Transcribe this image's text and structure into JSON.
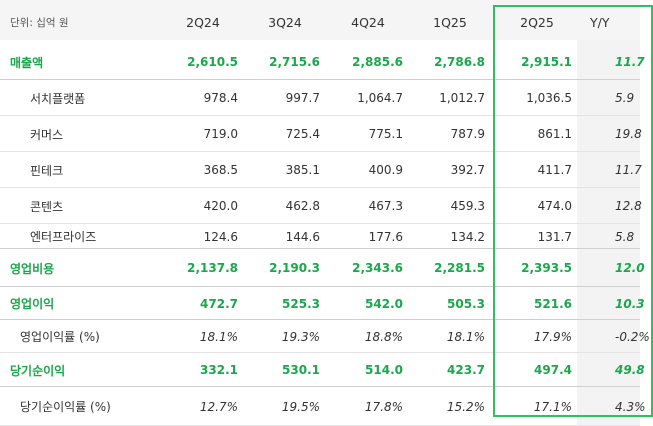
{
  "unit_label": "단위: 십억 원",
  "columns": [
    "2Q24",
    "3Q24",
    "4Q24",
    "1Q25",
    "2Q25",
    "Y/Y"
  ],
  "rows": [
    {
      "label": "매출액",
      "values": [
        "2,610.5",
        "2,715.6",
        "2,885.6",
        "2,786.8",
        "2,915.1",
        "11.7"
      ],
      "type": "main"
    },
    {
      "label": "서치플랫폼",
      "values": [
        "978.4",
        "997.7",
        "1,064.7",
        "1,012.7",
        "1,036.5",
        "5.9"
      ],
      "type": "sub"
    },
    {
      "label": "커머스",
      "values": [
        "719.0",
        "725.4",
        "775.1",
        "787.9",
        "861.1",
        "19.8"
      ],
      "type": "sub"
    },
    {
      "label": "핀테크",
      "values": [
        "368.5",
        "385.1",
        "400.9",
        "392.7",
        "411.7",
        "11.7"
      ],
      "type": "sub"
    },
    {
      "label": "콘텐츠",
      "values": [
        "420.0",
        "462.8",
        "467.3",
        "459.3",
        "474.0",
        "12.8"
      ],
      "type": "sub"
    },
    {
      "label": "엔터프라이즈",
      "values": [
        "124.6",
        "144.6",
        "177.6",
        "134.2",
        "131.7",
        "5.8"
      ],
      "type": "sub"
    },
    {
      "label": "영업비용",
      "values": [
        "2,137.8",
        "2,190.3",
        "2,343.6",
        "2,281.5",
        "2,393.5",
        "12.0"
      ],
      "type": "main"
    },
    {
      "label": "영업이익",
      "values": [
        "472.7",
        "525.3",
        "542.0",
        "505.3",
        "521.6",
        "10.3"
      ],
      "type": "main"
    },
    {
      "label": "영업이익률 (%)",
      "values": [
        "18.1%",
        "19.3%",
        "18.8%",
        "18.1%",
        "17.9%",
        "-0.2%"
      ],
      "type": "ratio"
    },
    {
      "label": "당기순이익",
      "values": [
        "332.1",
        "530.1",
        "514.0",
        "423.7",
        "497.4",
        "49.8"
      ],
      "type": "main"
    },
    {
      "label": "당기순이익률 (%)",
      "values": [
        "12.7%",
        "19.5%",
        "17.8%",
        "15.2%",
        "17.1%",
        "4.3%"
      ],
      "type": "ratio"
    }
  ],
  "colors": {
    "accent": "#1aa84a",
    "highlight_border": "#2fc15a"
  }
}
